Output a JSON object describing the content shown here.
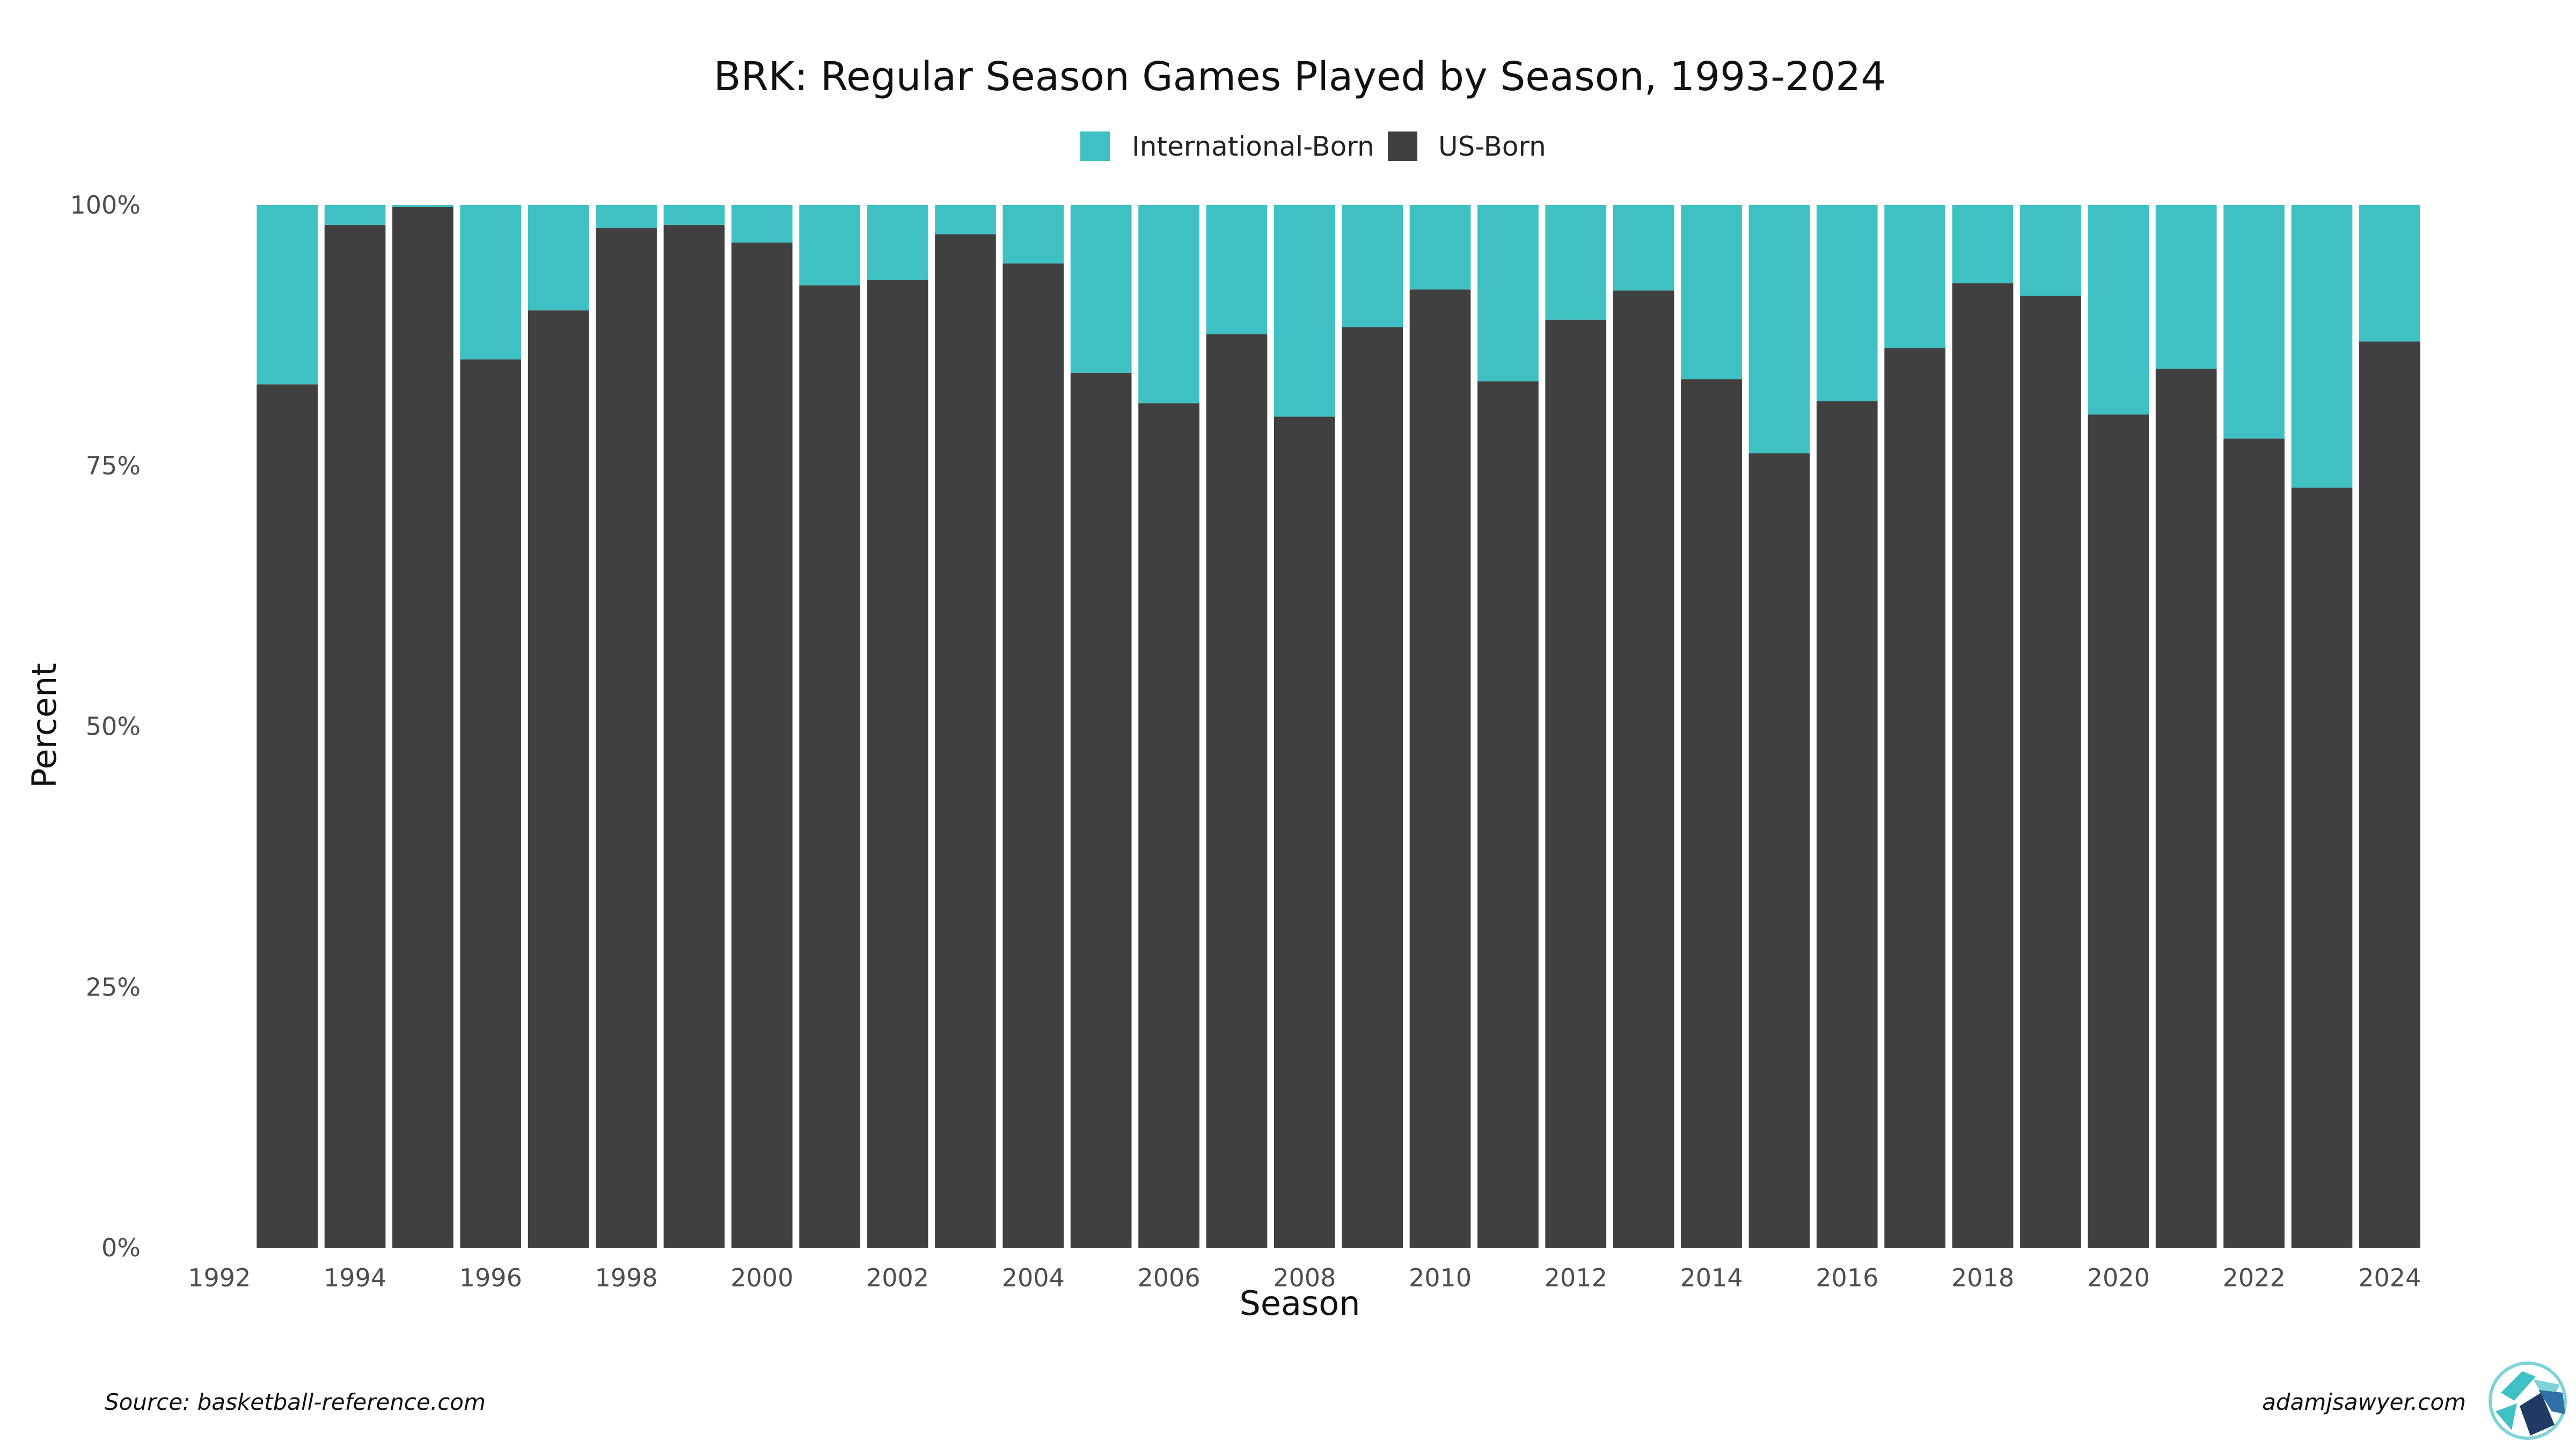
{
  "chart_data": {
    "type": "bar",
    "stacked": true,
    "title": "BRK: Regular Season Games Played by Season, 1993-2024",
    "xlabel": "Season",
    "ylabel": "Percent",
    "ylim": [
      0,
      100
    ],
    "y_ticks": [
      "0%",
      "25%",
      "50%",
      "75%",
      "100%"
    ],
    "y_tick_values": [
      0,
      25,
      50,
      75,
      100
    ],
    "x_ticks": [
      "1992",
      "1994",
      "1996",
      "1998",
      "2000",
      "2002",
      "2004",
      "2006",
      "2008",
      "2010",
      "2012",
      "2014",
      "2016",
      "2018",
      "2020",
      "2022",
      "2024"
    ],
    "x_tick_values": [
      1992,
      1994,
      1996,
      1998,
      2000,
      2002,
      2004,
      2006,
      2008,
      2010,
      2012,
      2014,
      2016,
      2018,
      2020,
      2022,
      2024
    ],
    "xlim": [
      1992,
      2024
    ],
    "legend_position": "top",
    "grid": false,
    "categories": [
      1993,
      1994,
      1995,
      1996,
      1997,
      1998,
      1999,
      2000,
      2001,
      2002,
      2003,
      2004,
      2005,
      2006,
      2007,
      2008,
      2009,
      2010,
      2011,
      2012,
      2013,
      2014,
      2015,
      2016,
      2017,
      2018,
      2019,
      2020,
      2021,
      2022,
      2023,
      2024
    ],
    "series": [
      {
        "name": "US-Born",
        "color": "#404040",
        "values": [
          82.8,
          98.1,
          99.8,
          85.2,
          89.9,
          97.8,
          98.1,
          96.4,
          92.3,
          92.8,
          97.2,
          94.4,
          83.9,
          81.0,
          87.6,
          79.7,
          88.3,
          91.9,
          83.1,
          89.0,
          91.8,
          83.3,
          76.2,
          81.2,
          86.3,
          92.5,
          91.3,
          79.9,
          84.3,
          77.6,
          72.9,
          86.9
        ]
      },
      {
        "name": "International-Born",
        "color": "#3fc1c3",
        "values": [
          17.2,
          1.9,
          0.2,
          14.8,
          10.1,
          2.2,
          1.9,
          3.6,
          7.7,
          7.2,
          2.8,
          5.6,
          16.1,
          19.0,
          12.4,
          20.3,
          11.7,
          8.1,
          16.9,
          11.0,
          8.2,
          16.7,
          23.8,
          18.8,
          13.7,
          7.5,
          8.7,
          20.1,
          15.7,
          22.4,
          27.1,
          13.1
        ]
      }
    ],
    "legend_order": [
      "International-Born",
      "US-Born"
    ]
  },
  "footer": {
    "source": "Source: basketball-reference.com",
    "credit": "adamjsawyer.com"
  },
  "logo": {
    "icon": "adamjsawyer-logo-icon",
    "colors": [
      "#3fc1c3",
      "#1f3a64",
      "#2f6fa3",
      "#7fd3d6"
    ]
  }
}
